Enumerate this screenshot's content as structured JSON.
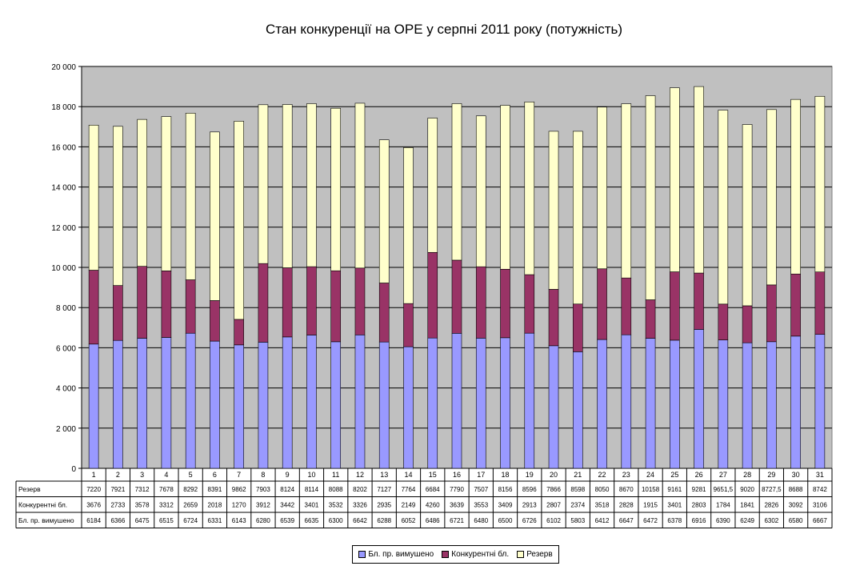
{
  "chart_data": {
    "type": "bar",
    "stacked": true,
    "title": "Стан конкуренції на ОРЕ  у серпні 2011 року (потужність)",
    "categories": [
      "1",
      "2",
      "3",
      "4",
      "5",
      "6",
      "7",
      "8",
      "9",
      "10",
      "11",
      "12",
      "13",
      "14",
      "15",
      "16",
      "17",
      "18",
      "19",
      "20",
      "21",
      "22",
      "23",
      "24",
      "25",
      "26",
      "27",
      "28",
      "29",
      "30",
      "31"
    ],
    "ylim": [
      0,
      20000
    ],
    "yticks": [
      "0",
      "2 000",
      "4 000",
      "6 000",
      "8 000",
      "10 000",
      "12 000",
      "14 000",
      "16 000",
      "18 000",
      "20 000"
    ],
    "grid": true,
    "plot_background": "#c0c0c0",
    "legend_position": "bottom",
    "series": [
      {
        "name": "Бл. пр. вимушено",
        "color": "#9999ff",
        "values": [
          6184,
          6366,
          6475,
          6515,
          6724,
          6331,
          6143,
          6280,
          6539,
          6635,
          6300,
          6642,
          6288,
          6052,
          6486,
          6721,
          6480,
          6500,
          6726,
          6102,
          5803,
          6412,
          6647,
          6472,
          6378,
          6916,
          6390,
          6249,
          6302,
          6580,
          6667
        ],
        "labels": [
          "6184",
          "6366",
          "6475",
          "6515",
          "6724",
          "6331",
          "6143",
          "6280",
          "6539",
          "6635",
          "6300",
          "6642",
          "6288",
          "6052",
          "6486",
          "6721",
          "6480",
          "6500",
          "6726",
          "6102",
          "5803",
          "6412",
          "6647",
          "6472",
          "6378",
          "6916",
          "6390",
          "6249",
          "6302",
          "6580",
          "6667"
        ]
      },
      {
        "name": "Конкурентні бл.",
        "color": "#993366",
        "values": [
          3676,
          2733,
          3578,
          3312,
          2659,
          2018,
          1270,
          3912,
          3442,
          3401,
          3532,
          3326,
          2935,
          2149,
          4260,
          3639,
          3553,
          3409,
          2913,
          2807,
          2374,
          3518,
          2828,
          1915,
          3401,
          2803,
          1784,
          1841,
          2826,
          3092,
          3106
        ],
        "labels": [
          "3676",
          "2733",
          "3578",
          "3312",
          "2659",
          "2018",
          "1270",
          "3912",
          "3442",
          "3401",
          "3532",
          "3326",
          "2935",
          "2149",
          "4260",
          "3639",
          "3553",
          "3409",
          "2913",
          "2807",
          "2374",
          "3518",
          "2828",
          "1915",
          "3401",
          "2803",
          "1784",
          "1841",
          "2826",
          "3092",
          "3106"
        ]
      },
      {
        "name": "Резерв",
        "color": "#ffffcc",
        "values": [
          7220,
          7921,
          7312,
          7678,
          8292,
          8391,
          9862,
          7903,
          8124,
          8114,
          8088,
          8202,
          7127,
          7764,
          6684,
          7790,
          7507,
          8156,
          8596,
          7866,
          8598,
          8050,
          8670,
          10158,
          9161,
          9281,
          9651.5,
          9020,
          8727.5,
          8688,
          8742
        ],
        "labels": [
          "7220",
          "7921",
          "7312",
          "7678",
          "8292",
          "8391",
          "9862",
          "7903",
          "8124",
          "8114",
          "8088",
          "8202",
          "7127",
          "7764",
          "6684",
          "7790",
          "7507",
          "8156",
          "8596",
          "7866",
          "8598",
          "8050",
          "8670",
          "10158",
          "9161",
          "9281",
          "9651,5",
          "9020",
          "8727,5",
          "8688",
          "8742"
        ]
      }
    ],
    "table_row_order": [
      "Резерв",
      "Конкурентні бл.",
      "Бл. пр. вимушено"
    ]
  }
}
